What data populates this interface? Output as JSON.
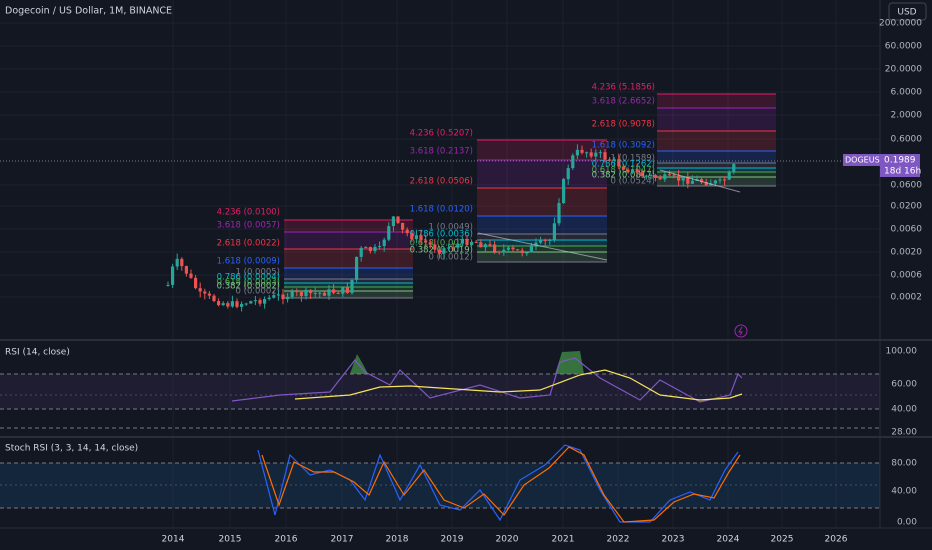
{
  "header": {
    "title": "Dogecoin / US Dollar, 1M, BINANCE",
    "currency": "USD"
  },
  "price_axis": [
    "200.0000",
    "60.0000",
    "20.0000",
    "6.0000",
    "2.0000",
    "0.6000",
    "0.0600",
    "0.0200",
    "0.0060",
    "0.0020",
    "0.0006",
    "0.0002"
  ],
  "badge": {
    "symbol": "DOGEUSD",
    "price": "0.1989",
    "countdown": "18d 16h"
  },
  "fib_groups": [
    {
      "levels": [
        "4.236 (0.0100)",
        "3.618 (0.0057)",
        "2.618 (0.0022)",
        "1.618 (0.0009)",
        "1 (0.0005)",
        "0.786 (0.0004)",
        "0.618 (0.0003)",
        "0.382 (0.0002)",
        "0 (0.0002)"
      ]
    },
    {
      "levels": [
        "4.236 (0.5207)",
        "3.618 (0.2137)",
        "2.618 (0.0506)",
        "1.618 (0.0120)",
        "1 (0.0049)",
        "0.786 (0.0036)",
        "0.618 (0.0027)",
        "0.382 (0.0019)",
        "0 (0.0012)"
      ]
    },
    {
      "levels": [
        "4.236 (5.1856)",
        "3.618 (2.6652)",
        "2.618 (0.9078)",
        "1.618 (0.3092)",
        "1 (0.1589)",
        "0.786 (0.1262)",
        "0.618 (0.1047)",
        "0.382 (0.0817)",
        "0 (0.0524)"
      ]
    }
  ],
  "rsi": {
    "title": "RSI (14, close)",
    "axis": [
      "100.00",
      "60.00",
      "40.00",
      "28.00"
    ]
  },
  "stoch": {
    "title": "Stoch RSI (3, 3, 14, 14, close)",
    "axis": [
      "80.00",
      "40.00",
      "0.00"
    ]
  },
  "time_axis": [
    "2014",
    "2015",
    "2016",
    "2017",
    "2018",
    "2019",
    "2020",
    "2021",
    "2022",
    "2023",
    "2024",
    "2025",
    "2026"
  ]
}
